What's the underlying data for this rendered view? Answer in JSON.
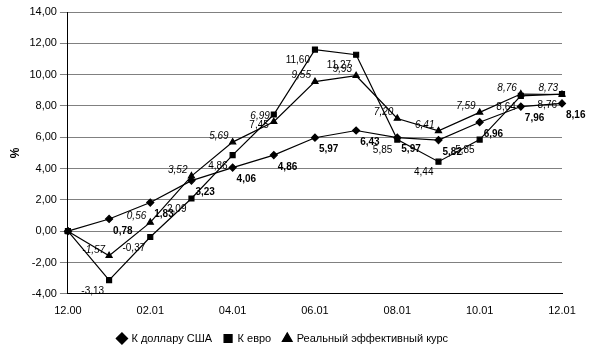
{
  "chart_data": {
    "type": "line",
    "y_label": "%",
    "categories": [
      "12.00",
      null,
      "02.01",
      null,
      "04.01",
      null,
      "06.01",
      null,
      "08.01",
      null,
      "10.01",
      null,
      "12.01"
    ],
    "ylim": [
      -4,
      14
    ],
    "yticks": [
      {
        "value": -4,
        "label": "-4,00"
      },
      {
        "value": -2,
        "label": "-2,00"
      },
      {
        "value": 0,
        "label": "0,00"
      },
      {
        "value": 2,
        "label": "2,00"
      },
      {
        "value": 4,
        "label": "4,00"
      },
      {
        "value": 6,
        "label": "6,00"
      },
      {
        "value": 8,
        "label": "8,00"
      },
      {
        "value": 10,
        "label": "10,00"
      },
      {
        "value": 12,
        "label": "12,00"
      },
      {
        "value": 14,
        "label": "14,00"
      }
    ],
    "grid": true,
    "legend": "bottom",
    "data_labels": true,
    "series": [
      {
        "name": "К доллару США",
        "color": "#000000",
        "marker": "diamond",
        "line_style": "solid",
        "values": [
          0,
          0.78,
          1.83,
          3.23,
          4.06,
          4.86,
          5.97,
          6.43,
          5.97,
          5.82,
          6.96,
          7.96,
          8.16
        ],
        "value_labels": [
          null,
          "0,78",
          "1,83",
          "3,23",
          "4,06",
          "4,86",
          "5,97",
          "6,43",
          "5,97",
          "5,82",
          "6,96",
          "7,96",
          "8,16"
        ]
      },
      {
        "name": "К евро",
        "color": "#000000",
        "marker": "square",
        "line_style": "solid",
        "values": [
          0,
          -3.13,
          -0.37,
          2.09,
          4.86,
          7.45,
          11.6,
          11.27,
          5.85,
          4.44,
          5.85,
          8.64,
          8.76
        ],
        "value_labels": [
          null,
          "-3,13",
          "-0,37",
          "2,09",
          "4,86",
          "7,45",
          "11,60",
          "11,27",
          "5,85",
          "4,44",
          "5,85",
          "8,64",
          "8,76"
        ]
      },
      {
        "name": "Реальный эффективный курс",
        "color": "#000000",
        "marker": "triangle",
        "line_style": "solid",
        "values": [
          0,
          -1.57,
          0.56,
          3.52,
          5.69,
          6.99,
          9.55,
          9.93,
          7.2,
          6.41,
          7.59,
          8.76,
          8.73
        ],
        "value_labels": [
          null,
          "-1,57",
          "0,56",
          "3,52",
          "5,69",
          "6,99",
          "9,55",
          "9,93",
          "7,20",
          "6,41",
          "7,59",
          "8,76",
          "8,73"
        ]
      }
    ]
  }
}
